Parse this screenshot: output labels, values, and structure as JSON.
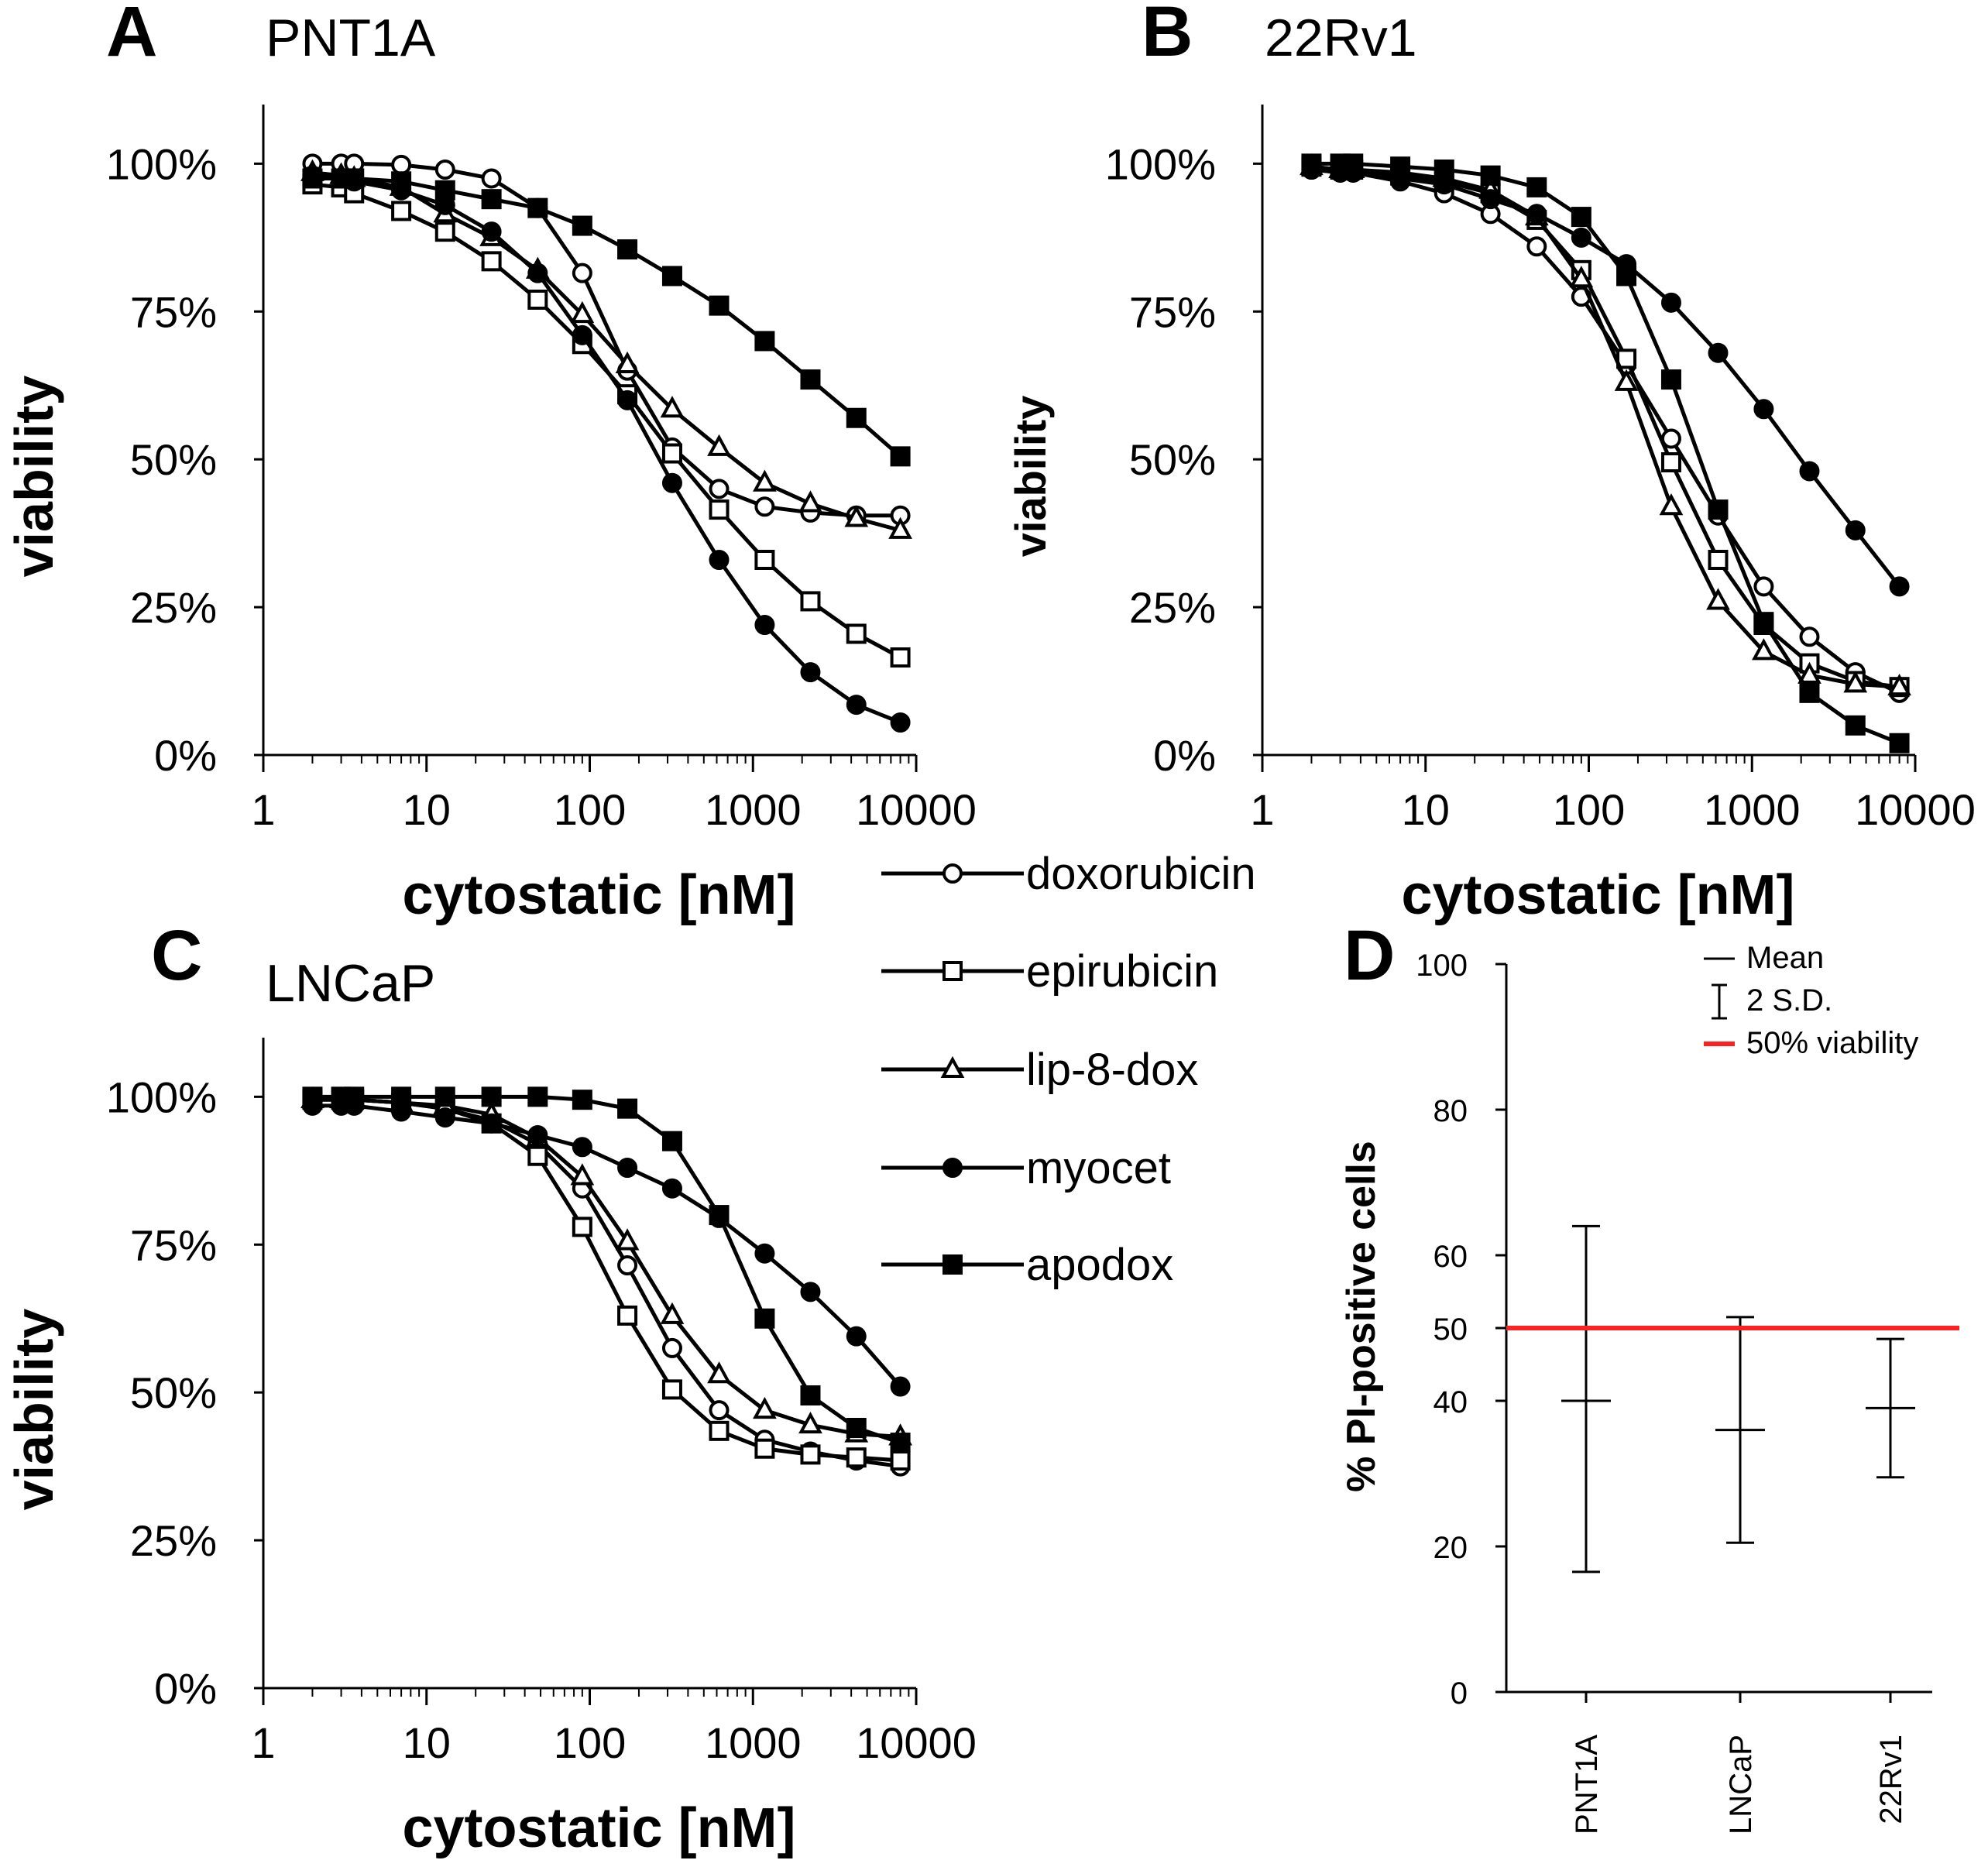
{
  "curve_x": [
    2,
    3,
    3.6,
    7,
    13,
    25,
    48,
    90,
    170,
    320,
    620,
    1180,
    2250,
    4300,
    8000
  ],
  "series_meta": [
    {
      "name": "doxorubicin",
      "marker": "circle",
      "fill": "#ffffff"
    },
    {
      "name": "epirubicin",
      "marker": "square",
      "fill": "#ffffff"
    },
    {
      "name": "lip-8-dox",
      "marker": "triangle",
      "fill": "#ffffff"
    },
    {
      "name": "myocet",
      "marker": "circle",
      "fill": "#000000"
    },
    {
      "name": "apodox",
      "marker": "square",
      "fill": "#000000"
    }
  ],
  "legend": {
    "items": [
      "doxorubicin",
      "epirubicin",
      "lip-8-dox",
      "myocet",
      "apodox"
    ]
  },
  "chart_data": [
    {
      "id": "A",
      "panel_letter": "A",
      "type": "line",
      "title": "PNT1A",
      "xlabel": "cytostatic [nM]",
      "ylabel": "viability",
      "xscale": "log",
      "xlim": [
        1,
        10000
      ],
      "ylim": [
        0,
        110
      ],
      "xticks": [
        1,
        10,
        100,
        1000,
        10000
      ],
      "xtick_labels": [
        "1",
        "10",
        "100",
        "1000",
        "10000"
      ],
      "yticks": [
        0,
        25,
        50,
        75,
        100
      ],
      "ytick_labels": [
        "0%",
        "25%",
        "50%",
        "75%",
        "100%"
      ],
      "series": [
        {
          "name": "doxorubicin",
          "values": [
            100,
            100,
            100,
            99.8,
            99,
            97.5,
            92.5,
            81.5,
            65,
            52,
            45,
            42,
            41,
            40.5,
            40.5
          ]
        },
        {
          "name": "epirubicin",
          "values": [
            96.5,
            96,
            95,
            92,
            88.5,
            83.5,
            77,
            69.5,
            61,
            51,
            41.5,
            33,
            26,
            20.5,
            16.5
          ]
        },
        {
          "name": "lip-8-dox",
          "values": [
            98.5,
            98,
            97.5,
            96,
            91.5,
            87.5,
            82,
            74.5,
            66,
            58.5,
            52,
            46,
            42.5,
            40,
            38
          ]
        },
        {
          "name": "myocet",
          "values": [
            98,
            97.5,
            97,
            95.5,
            93,
            88.5,
            81.5,
            71,
            60,
            46,
            33,
            22,
            14,
            8.5,
            5.5
          ]
        },
        {
          "name": "apodox",
          "values": [
            97.5,
            97.5,
            97.5,
            97,
            95.5,
            94,
            92.5,
            89.5,
            85.5,
            81,
            76,
            70,
            63.5,
            57,
            50.5
          ]
        }
      ]
    },
    {
      "id": "B",
      "panel_letter": "B",
      "type": "line",
      "title": "22Rv1",
      "xlabel": "cytostatic [nM]",
      "ylabel": "viability",
      "xscale": "log",
      "xlim": [
        1,
        10000
      ],
      "ylim": [
        0,
        110
      ],
      "xticks": [
        1,
        10,
        100,
        1000,
        10000
      ],
      "xtick_labels": [
        "1",
        "10",
        "100",
        "1000",
        "10000"
      ],
      "yticks": [
        0,
        25,
        50,
        75,
        100
      ],
      "ytick_labels": [
        "0%",
        "25%",
        "50%",
        "75%",
        "100%"
      ],
      "series": [
        {
          "name": "doxorubicin",
          "values": [
            99,
            98.5,
            98.5,
            97,
            95,
            91.5,
            86,
            77.5,
            66,
            53.5,
            40.5,
            28.5,
            20,
            14,
            10.5
          ]
        },
        {
          "name": "epirubicin",
          "values": [
            99.5,
            99,
            99,
            98,
            97,
            95,
            90.5,
            82,
            67,
            49.5,
            33,
            22,
            15.5,
            12.5,
            11.5
          ]
        },
        {
          "name": "lip-8-dox",
          "values": [
            99.5,
            99,
            99,
            98.5,
            97.5,
            95.5,
            91,
            80.5,
            63,
            42,
            26,
            17.5,
            13.5,
            12,
            11.5
          ]
        },
        {
          "name": "myocet",
          "values": [
            99,
            98.5,
            98.5,
            97.5,
            96.5,
            94,
            91.5,
            87.5,
            83,
            76.5,
            68,
            58.5,
            48,
            38,
            28.5
          ]
        },
        {
          "name": "apodox",
          "values": [
            100,
            100,
            100,
            99.5,
            99,
            98,
            96,
            91,
            81,
            63.5,
            41.5,
            22.5,
            10.5,
            5,
            2
          ]
        }
      ]
    },
    {
      "id": "C",
      "panel_letter": "C",
      "type": "line",
      "title": "LNCaP",
      "xlabel": "cytostatic [nM]",
      "ylabel": "viability",
      "xscale": "log",
      "xlim": [
        1,
        10000
      ],
      "ylim": [
        0,
        110
      ],
      "xticks": [
        1,
        10,
        100,
        1000,
        10000
      ],
      "xtick_labels": [
        "1",
        "10",
        "100",
        "1000",
        "10000"
      ],
      "yticks": [
        0,
        25,
        50,
        75,
        100
      ],
      "ytick_labels": [
        "0%",
        "25%",
        "50%",
        "75%",
        "100%"
      ],
      "series": [
        {
          "name": "doxorubicin",
          "values": [
            99.5,
            99.5,
            99.5,
            99,
            98,
            96,
            92,
            84.5,
            71.5,
            57.5,
            47,
            42,
            40,
            38.5,
            37.5
          ]
        },
        {
          "name": "epirubicin",
          "values": [
            99.5,
            99.5,
            99.5,
            99,
            98,
            95.5,
            90,
            78,
            63,
            50.5,
            43.5,
            40.5,
            39.5,
            39,
            38.5
          ]
        },
        {
          "name": "lip-8-dox",
          "values": [
            99.5,
            99.5,
            99.5,
            99,
            98.5,
            97,
            93,
            86.5,
            75.5,
            63,
            53,
            47,
            44.5,
            43,
            42.5
          ]
        },
        {
          "name": "myocet",
          "values": [
            98.5,
            98.5,
            98.5,
            97.5,
            96.5,
            95.5,
            93.5,
            91.5,
            88,
            84.5,
            79.5,
            73.5,
            67,
            59.5,
            51
          ]
        },
        {
          "name": "apodox",
          "values": [
            100,
            100,
            100,
            100,
            100,
            100,
            100,
            99.5,
            98,
            92.5,
            80,
            62.5,
            49.5,
            44,
            41.5
          ]
        }
      ]
    },
    {
      "id": "D",
      "panel_letter": "D",
      "type": "errorbar",
      "title": "",
      "xlabel": "",
      "ylabel": "% PI-positive cells",
      "ylim": [
        0,
        100
      ],
      "yticks": [
        0,
        20,
        40,
        50,
        60,
        80,
        100
      ],
      "ytick_labels": [
        "0",
        "20",
        "40",
        "50",
        "60",
        "80",
        "100"
      ],
      "categories": [
        "PNT1A",
        "LNCaP",
        "22Rv1"
      ],
      "means": [
        40,
        36,
        39
      ],
      "sd_lower": [
        16.5,
        20.5,
        29.5
      ],
      "sd_upper": [
        64,
        51.5,
        48.5
      ],
      "reference_line": {
        "value": 50,
        "color": "#ff2020",
        "label": "50% viability"
      },
      "legend": [
        {
          "symbol": "mean",
          "label": "Mean"
        },
        {
          "symbol": "sd",
          "label": "2 S.D."
        },
        {
          "symbol": "ref",
          "label": "50% viability"
        }
      ]
    }
  ]
}
